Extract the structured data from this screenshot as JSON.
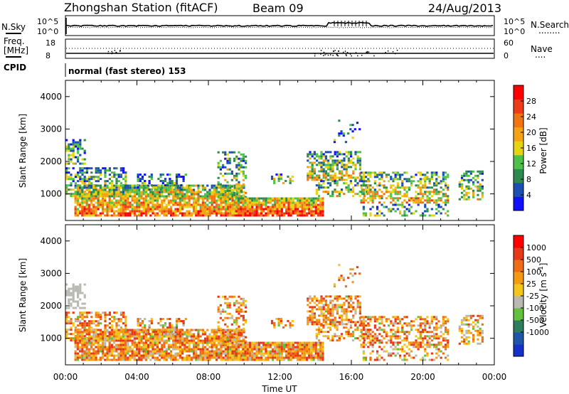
{
  "header": {
    "station": "Zhongshan Station (fitACF)",
    "beam": "Beam 09",
    "date": "24/Aug/2013"
  },
  "strip1": {
    "left_label": "N.Sky",
    "right_label": "N.Search",
    "right_legend": "........",
    "left_ticks": [
      "10^5",
      "10^0"
    ],
    "right_ticks": [
      "10^5",
      "10^0"
    ]
  },
  "strip2": {
    "left_label_line1": "Freq.",
    "left_label_line2": "[MHz]",
    "right_label": "Nave",
    "right_legend": "....",
    "left_ticks": [
      "18",
      "8"
    ],
    "right_ticks": [
      "60",
      "0"
    ]
  },
  "cpid": {
    "label": "CPID",
    "mode_text": "normal (fast stereo) 153"
  },
  "chart_data": [
    {
      "type": "heatmap",
      "name": "power",
      "ylabel": "Slant Range [km]",
      "xlabel": "",
      "xlim": [
        0,
        24
      ],
      "ylim": [
        180,
        4500
      ],
      "yticks": [
        1000,
        2000,
        3000,
        4000
      ],
      "colorbar": {
        "label": "Power [dB]",
        "ticks": [
          "28",
          "24",
          "20",
          "16",
          "12",
          "8",
          "4"
        ],
        "tick_values": [
          28,
          24,
          20,
          16,
          12,
          8,
          4
        ],
        "range": [
          0,
          32
        ],
        "colors": [
          "#1010ff",
          "#1b4fb3",
          "#2f8a4f",
          "#4fc04a",
          "#e6d410",
          "#f3a313",
          "#f27312",
          "#ee3b1a",
          "#ff0000"
        ]
      }
    },
    {
      "type": "heatmap",
      "name": "velocity",
      "ylabel": "Slant Range [km]",
      "xlabel": "Time UT",
      "xlim": [
        0,
        24
      ],
      "ylim": [
        180,
        4500
      ],
      "yticks": [
        1000,
        2000,
        3000,
        4000
      ],
      "xtick_labels": [
        "00:00",
        "04:00",
        "08:00",
        "12:00",
        "16:00",
        "20:00",
        "00:00"
      ],
      "colorbar": {
        "label": "Velocity [m s-1]",
        "ticks": [
          "1000",
          "500",
          "100",
          "25",
          "-25",
          "-100",
          "-500",
          "-1000"
        ],
        "colors": [
          "#1531c9",
          "#1e56a8",
          "#2e7d5e",
          "#62c13d",
          "#b9b9b2",
          "#f6c51b",
          "#f39a13",
          "#ee6c16",
          "#e63917",
          "#ff0000"
        ]
      }
    }
  ]
}
